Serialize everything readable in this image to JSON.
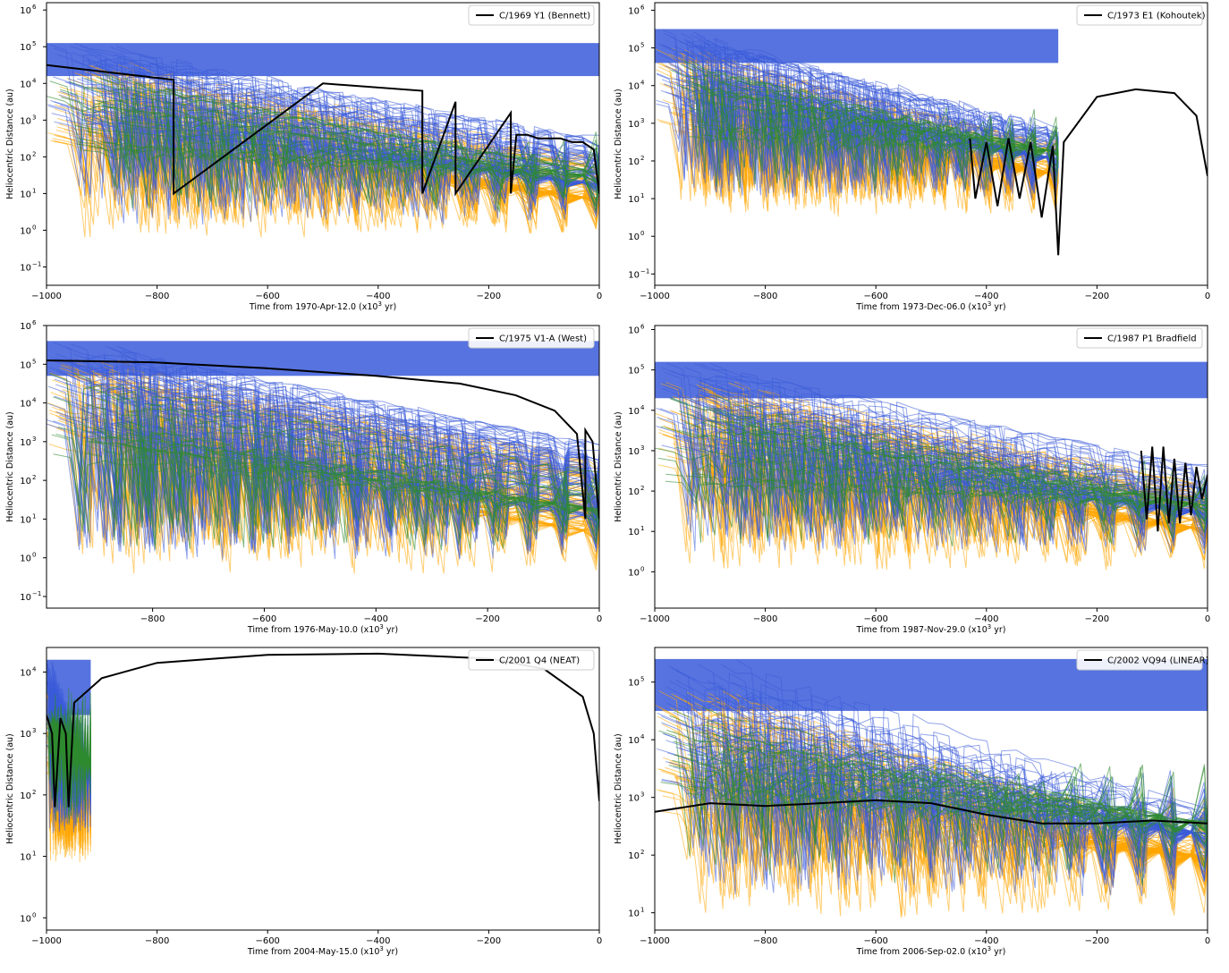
{
  "colors": {
    "blue": "#3a5bd9",
    "orange": "#ffa500",
    "green": "#2e8b2e",
    "black": "#000000"
  },
  "chart_data": [
    {
      "type": "line",
      "legend": "C/1969 Y1 (Bennett)",
      "legend_position": "top-right",
      "xlabel": "Time from 1970-Apr-12.0 (x10",
      "xlabel_sup": "3",
      "xlabel_end": " yr)",
      "ylabel": "Heliocentric Distance (au)",
      "yscale": "log",
      "xlim": [
        -1000,
        0
      ],
      "ylim_exp": [
        -1.5,
        6.2
      ],
      "xticks": [
        "−1000",
        "−800",
        "−600",
        "−400",
        "−200",
        "0"
      ],
      "xtick_values": [
        -1000,
        -800,
        -600,
        -400,
        -200,
        0
      ],
      "yticks": [
        "10",
        "10",
        "10",
        "10",
        "10",
        "10",
        "10",
        "10"
      ],
      "ytick_exps": [
        "−1",
        "0",
        "1",
        "2",
        "3",
        "4",
        "5",
        "6"
      ],
      "ytick_values": [
        -1,
        0,
        1,
        2,
        3,
        4,
        5,
        6
      ],
      "clone_envelope": {
        "blue_top_exp": 5.1,
        "orange_floor_exp": -0.3,
        "start": -1000,
        "end": 0
      },
      "nominal_orbit": {
        "x": [
          -1000,
          -770,
          -770,
          -500,
          -320,
          -320,
          -260,
          -260,
          -160,
          -160,
          -150,
          -130,
          -110,
          -90,
          -70,
          -50,
          -30,
          -10,
          0
        ],
        "y_exp": [
          4.5,
          4.1,
          1.0,
          4.0,
          3.8,
          1.0,
          3.5,
          1.0,
          3.2,
          1.0,
          2.6,
          2.6,
          2.5,
          2.5,
          2.5,
          2.4,
          2.4,
          2.2,
          1.0
        ]
      }
    },
    {
      "type": "line",
      "legend": "C/1973 E1 (Kohoutek)",
      "legend_position": "top-right",
      "xlabel": "Time from 1973-Dec-06.0 (x10",
      "xlabel_sup": "3",
      "xlabel_end": " yr)",
      "ylabel": "Heliocentric Distance (au)",
      "yscale": "log",
      "xlim": [
        -1000,
        0
      ],
      "ylim_exp": [
        -1.3,
        6.2
      ],
      "xticks": [
        "−1000",
        "−800",
        "−600",
        "−400",
        "−200",
        "0"
      ],
      "xtick_values": [
        -1000,
        -800,
        -600,
        -400,
        -200,
        0
      ],
      "yticks": [
        "10",
        "10",
        "10",
        "10",
        "10",
        "10",
        "10",
        "10"
      ],
      "ytick_exps": [
        "−1",
        "0",
        "1",
        "2",
        "3",
        "4",
        "5",
        "6"
      ],
      "ytick_values": [
        -1,
        0,
        1,
        2,
        3,
        4,
        5,
        6
      ],
      "clone_envelope": {
        "blue_top_exp": 5.5,
        "orange_floor_exp": 0.5,
        "start": -1000,
        "end": -270
      },
      "nominal_orbit": {
        "x": [
          -430,
          -420,
          -400,
          -380,
          -360,
          -340,
          -320,
          -300,
          -280,
          -270,
          -260,
          -200,
          -130,
          -60,
          -20,
          0
        ],
        "y_exp": [
          2.6,
          1.0,
          2.5,
          0.8,
          2.6,
          1.0,
          2.5,
          0.5,
          2.4,
          -0.5,
          2.5,
          3.7,
          3.9,
          3.8,
          3.2,
          1.6
        ]
      }
    },
    {
      "type": "line",
      "legend": "C/1975 V1-A (West)",
      "legend_position": "top-right",
      "xlabel": "Time from 1976-May-10.0 (x10",
      "xlabel_sup": "3",
      "xlabel_end": " yr)",
      "ylabel": "Heliocentric Distance (au)",
      "yscale": "log",
      "xlim": [
        -990,
        0
      ],
      "ylim_exp": [
        -1.3,
        6.0
      ],
      "xticks": [
        "−800",
        "−600",
        "−400",
        "−200",
        "0"
      ],
      "xtick_values": [
        -800,
        -600,
        -400,
        -200,
        0
      ],
      "yticks": [
        "10",
        "10",
        "10",
        "10",
        "10",
        "10",
        "10",
        "10"
      ],
      "ytick_exps": [
        "−1",
        "0",
        "1",
        "2",
        "3",
        "4",
        "5",
        "6"
      ],
      "ytick_values": [
        -1,
        0,
        1,
        2,
        3,
        4,
        5,
        6
      ],
      "clone_envelope": {
        "blue_top_exp": 5.6,
        "orange_floor_exp": -0.5,
        "start": -990,
        "end": 0
      },
      "nominal_orbit": {
        "x": [
          -990,
          -800,
          -600,
          -400,
          -250,
          -150,
          -80,
          -40,
          -25,
          -25,
          -12,
          0
        ],
        "y_exp": [
          5.1,
          5.05,
          4.9,
          4.7,
          4.5,
          4.2,
          3.8,
          3.2,
          1.0,
          3.3,
          3.0,
          1.0
        ]
      }
    },
    {
      "type": "line",
      "legend": "C/1987 P1 Bradfield",
      "legend_position": "top-right",
      "xlabel": "Time from 1987-Nov-29.0 (x10",
      "xlabel_sup": "3",
      "xlabel_end": " yr)",
      "ylabel": "Heliocentric Distance (au)",
      "yscale": "log",
      "xlim": [
        -1000,
        0
      ],
      "ylim_exp": [
        -0.9,
        6.1
      ],
      "xticks": [
        "−1000",
        "−800",
        "−600",
        "−400",
        "−200",
        "0"
      ],
      "xtick_values": [
        -1000,
        -800,
        -600,
        -400,
        -200,
        0
      ],
      "yticks": [
        "10",
        "10",
        "10",
        "10",
        "10",
        "10",
        "10"
      ],
      "ytick_exps": [
        "0",
        "1",
        "2",
        "3",
        "4",
        "5",
        "6"
      ],
      "ytick_values": [
        0,
        1,
        2,
        3,
        4,
        5,
        6
      ],
      "clone_envelope": {
        "blue_top_exp": 5.2,
        "orange_floor_exp": -0.1,
        "start": -1000,
        "end": 0
      },
      "nominal_orbit": {
        "x": [
          -120,
          -110,
          -100,
          -90,
          -80,
          -70,
          -60,
          -50,
          -40,
          -30,
          -20,
          -10,
          0
        ],
        "y_exp": [
          3.0,
          1.3,
          3.1,
          1.0,
          3.1,
          1.2,
          2.8,
          1.2,
          2.7,
          1.4,
          2.6,
          1.8,
          2.4
        ]
      }
    },
    {
      "type": "line",
      "legend": "C/2001 Q4 (NEAT)",
      "legend_position": "top-right",
      "xlabel": "Time from 2004-May-15.0 (x10",
      "xlabel_sup": "3",
      "xlabel_end": " yr)",
      "ylabel": "Heliocentric Distance (au)",
      "yscale": "log",
      "xlim": [
        -1000,
        0
      ],
      "ylim_exp": [
        -0.2,
        4.4
      ],
      "xticks": [
        "−1000",
        "−800",
        "−600",
        "−400",
        "−200",
        "0"
      ],
      "xtick_values": [
        -1000,
        -800,
        -600,
        -400,
        -200,
        0
      ],
      "yticks": [
        "10",
        "10",
        "10",
        "10",
        "10"
      ],
      "ytick_exps": [
        "0",
        "1",
        "2",
        "3",
        "4"
      ],
      "ytick_values": [
        0,
        1,
        2,
        3,
        4
      ],
      "clone_envelope": {
        "blue_top_exp": 4.2,
        "orange_floor_exp": 0.8,
        "start": -1000,
        "end": -920
      },
      "nominal_orbit": {
        "x": [
          -1000,
          -990,
          -985,
          -975,
          -965,
          -960,
          -950,
          -900,
          -800,
          -600,
          -400,
          -200,
          -100,
          -30,
          -10,
          0
        ],
        "y_exp": [
          3.3,
          3.0,
          1.8,
          3.25,
          3.0,
          1.8,
          3.5,
          3.9,
          4.15,
          4.28,
          4.3,
          4.22,
          4.05,
          3.6,
          3.0,
          1.9
        ]
      }
    },
    {
      "type": "line",
      "legend": "C/2002 VQ94 (LINEAR)",
      "legend_position": "top-right",
      "xlabel": "Time from 2006-Sep-02.0 (x10",
      "xlabel_sup": "3",
      "xlabel_end": " yr)",
      "ylabel": "Heliocentric Distance (au)",
      "yscale": "log",
      "xlim": [
        -1000,
        0
      ],
      "ylim_exp": [
        0.7,
        5.6
      ],
      "xticks": [
        "−1000",
        "−800",
        "−600",
        "−400",
        "−200",
        "0"
      ],
      "xtick_values": [
        -1000,
        -800,
        -600,
        -400,
        -200,
        0
      ],
      "yticks": [
        "10",
        "10",
        "10",
        "10",
        "10"
      ],
      "ytick_exps": [
        "1",
        "2",
        "3",
        "4",
        "5"
      ],
      "ytick_values": [
        1,
        2,
        3,
        4,
        5
      ],
      "clone_envelope": {
        "blue_top_exp": 5.4,
        "orange_floor_exp": 0.8,
        "start": -1000,
        "end": 0
      },
      "nominal_orbit": {
        "x": [
          -1000,
          -900,
          -800,
          -700,
          -600,
          -500,
          -400,
          -300,
          -200,
          -100,
          0
        ],
        "y_exp": [
          2.75,
          2.9,
          2.85,
          2.9,
          2.95,
          2.9,
          2.7,
          2.55,
          2.55,
          2.6,
          2.55
        ]
      }
    }
  ]
}
